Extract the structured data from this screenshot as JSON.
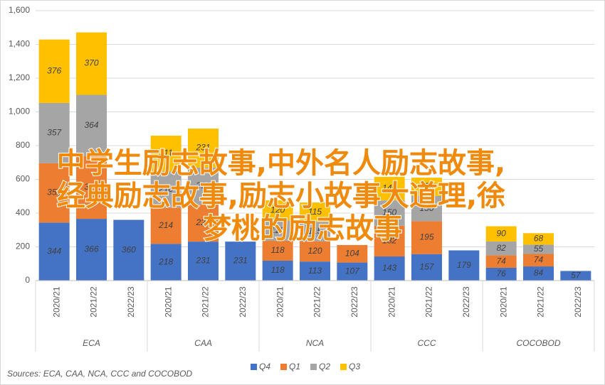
{
  "chart_data": {
    "type": "stacked_bar",
    "categories": [
      "2020/21",
      "2021/22",
      "2022/23",
      "2020/21",
      "2021/22",
      "2022/23",
      "2020/21",
      "2021/22",
      "2022/23",
      "2020/21",
      "2021/22",
      "2022/23",
      "2020/21",
      "2021/22",
      "2022/23"
    ],
    "groups": [
      "ECA",
      "CAA",
      "NCA",
      "CCC",
      "COCOBOD"
    ],
    "series": [
      {
        "name": "Q4",
        "color": "#4472c4",
        "values": [
          344,
          366,
          360,
          218,
          231,
          231,
          118,
          113,
          107,
          143,
          157,
          179,
          76,
          84,
          57
        ]
      },
      {
        "name": "Q1",
        "color": "#ed7d31",
        "values": [
          352,
          371,
          null,
          214,
          220,
          null,
          118,
          120,
          104,
          182,
          195,
          null,
          74,
          74,
          null
        ]
      },
      {
        "name": "Q2",
        "color": "#a5a5a5",
        "values": [
          357,
          364,
          null,
          216,
          219,
          null,
          120,
          115,
          null,
          150,
          150,
          null,
          82,
          55,
          null
        ]
      },
      {
        "name": "Q3",
        "color": "#ffc000",
        "values": [
          376,
          370,
          null,
          211,
          231,
          null,
          120,
          115,
          null,
          140,
          108,
          null,
          90,
          68,
          null
        ]
      }
    ],
    "ylim": [
      0,
      1600
    ],
    "yticks": [
      0,
      200,
      400,
      600,
      800,
      {
        "value": 1000,
        "label": "1,000"
      },
      {
        "value": 1200,
        "label": "1,200"
      },
      {
        "value": 1400,
        "label": "1,400"
      },
      {
        "value": 1600,
        "label": "1,600"
      }
    ],
    "grid": true,
    "legend": "bottom",
    "source": "Sources: ECA, CAA, NCA, CCC and COCOBOD",
    "annotation": [
      "中学生励志故事,中外名人励志故事,",
      "经典励志故事,励志小故事大道理,徐",
      "梦桃的励志故事"
    ]
  }
}
